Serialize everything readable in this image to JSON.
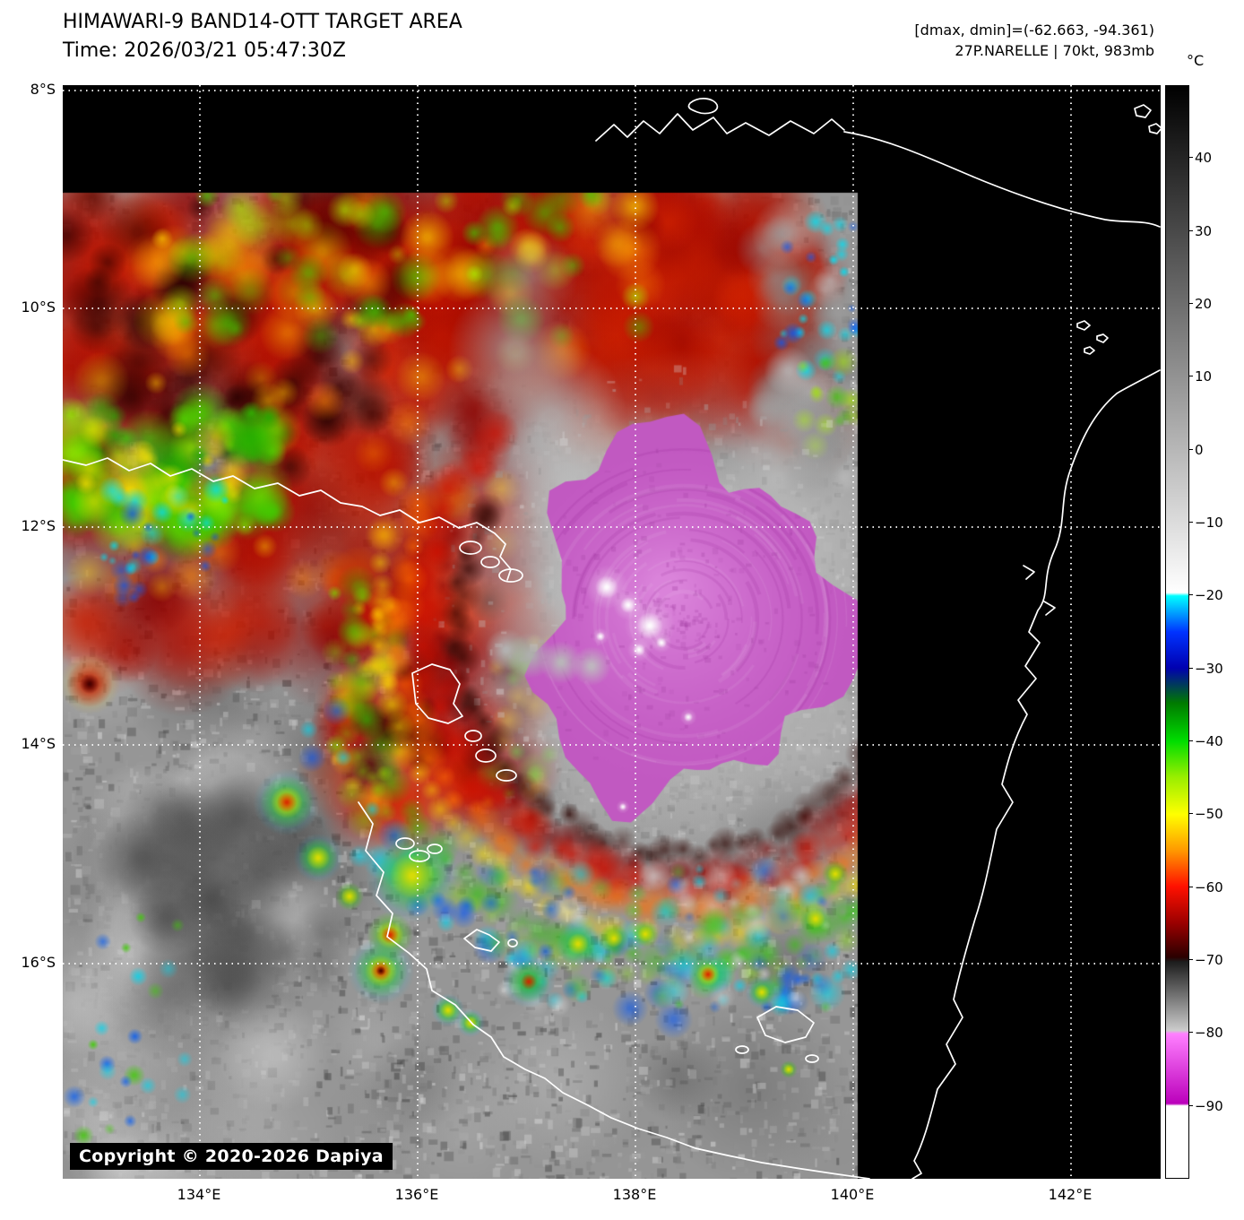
{
  "header": {
    "title": "HIMAWARI-9 BAND14-OTT TARGET AREA",
    "time": "Time: 2026/03/21 05:47:30Z",
    "dmax_dmin": "[dmax, dmin]=(-62.663, -94.361)",
    "storm_info": "27P.NARELLE | 70kt, 983mb"
  },
  "map": {
    "lat_labels": [
      "8°S",
      "10°S",
      "12°S",
      "14°S",
      "16°S"
    ],
    "lon_labels": [
      "134°E",
      "136°E",
      "138°E",
      "140°E",
      "142°E"
    ],
    "copyright": "Copyright © 2020-2026 Dapiya"
  },
  "colorbar": {
    "unit": "°C",
    "ticks": [
      "40",
      "30",
      "20",
      "10",
      "0",
      "−10",
      "−20",
      "−30",
      "−40",
      "−50",
      "−60",
      "−70",
      "−80",
      "−90"
    ],
    "range_top_c": 50,
    "range_bottom_c": -100,
    "gradient_stops": [
      {
        "temp_c": 50,
        "color": "#000000"
      },
      {
        "temp_c": -20,
        "color": "#ffffff"
      },
      {
        "temp_c": -20,
        "color": "#00ffff"
      },
      {
        "temp_c": -30,
        "color": "#0000b0"
      },
      {
        "temp_c": -40,
        "color": "#00dd00"
      },
      {
        "temp_c": -50,
        "color": "#ffff00"
      },
      {
        "temp_c": -60,
        "color": "#ff1100"
      },
      {
        "temp_c": -70,
        "color": "#1c1c1c"
      },
      {
        "temp_c": -80,
        "color": "#cccccc"
      },
      {
        "temp_c": -80,
        "color": "#ff80ff"
      },
      {
        "temp_c": -90,
        "color": "#bb00bb"
      },
      {
        "temp_c": -90,
        "color": "#ffffff"
      },
      {
        "temp_c": -100,
        "color": "#ffffff"
      }
    ]
  },
  "colors": {
    "background": "#ffffff",
    "map_background": "#000000",
    "coastline": "#ffffff",
    "grid": "#ffffff",
    "cdo_magenta": "#c159c1"
  }
}
